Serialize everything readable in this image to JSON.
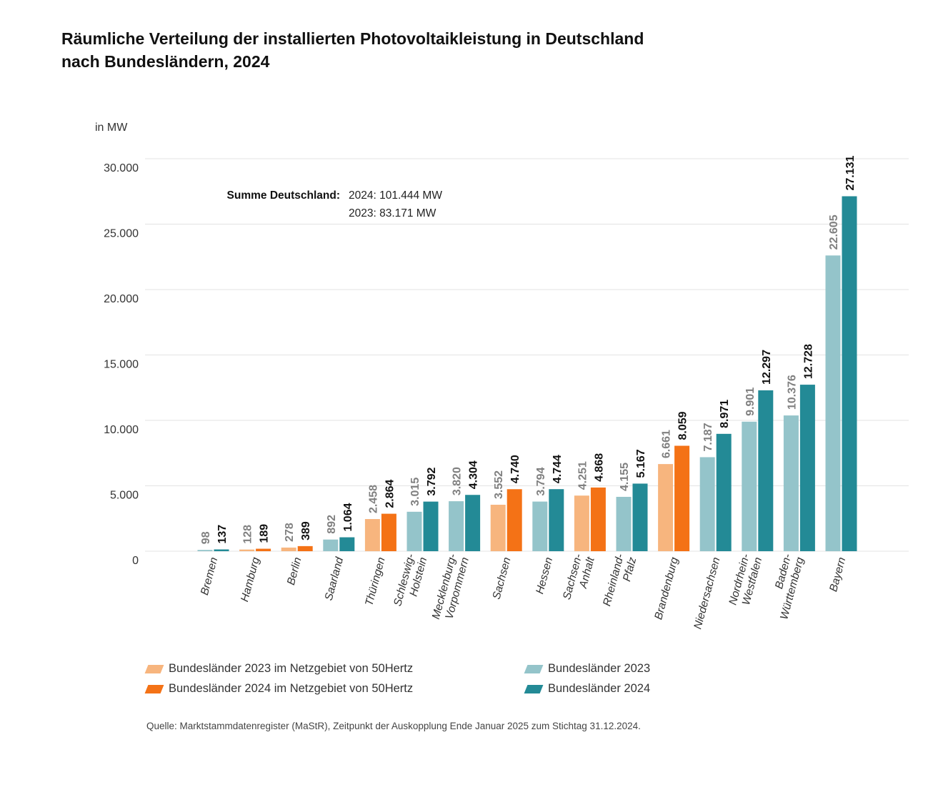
{
  "title": {
    "line1": "Räumliche Verteilung der installierten Photovoltaikleistung in Deutschland",
    "line2": "nach Bundesländern, 2024"
  },
  "annotation": {
    "label": "Summe Deutschland:",
    "line1": "2024: 101.444 MW",
    "line2": "2023: 83.171 MW"
  },
  "legend": [
    {
      "label": "Bundesländer 2023 im Netzgebiet von 50Hertz",
      "color": "#f7b57e"
    },
    {
      "label": "Bundesländer 2024 im Netzgebiet von 50Hertz",
      "color": "#f47216"
    },
    {
      "label": "Bundesländer 2023",
      "color": "#94c4ca"
    },
    {
      "label": "Bundesländer 2024",
      "color": "#238a96"
    }
  ],
  "source": "Quelle: Marktstammdatenregister (MaStR), Zeitpunkt der Auskopplung Ende Januar 2025 zum Stichtag 31.12.2024.",
  "chart_data": {
    "type": "bar",
    "title": "Räumliche Verteilung der installierten Photovoltaikleistung in Deutschland nach Bundesländern, 2024",
    "ylabel": "in MW",
    "xlabel": "",
    "ylim": [
      0,
      30000
    ],
    "yticks": [
      0,
      5000,
      10000,
      15000,
      20000,
      25000,
      30000
    ],
    "ytick_labels": [
      "0",
      "5.000",
      "10.000",
      "15.000",
      "20.000",
      "25.000",
      "30.000"
    ],
    "grid": true,
    "legend_position": "bottom",
    "categories": [
      {
        "label": "Bremen",
        "lines": [
          "Bremen"
        ]
      },
      {
        "label": "Hamburg",
        "lines": [
          "Hamburg"
        ]
      },
      {
        "label": "Berlin",
        "lines": [
          "Berlin"
        ]
      },
      {
        "label": "Saarland",
        "lines": [
          "Saarland"
        ]
      },
      {
        "label": "Thüringen",
        "lines": [
          "Thüringen"
        ]
      },
      {
        "label": "Schleswig-Holstein",
        "lines": [
          "Schleswig-",
          "Holstein"
        ]
      },
      {
        "label": "Mecklenburg-Vorpommern",
        "lines": [
          "Mecklenburg-",
          "Vorpommern"
        ]
      },
      {
        "label": "Sachsen",
        "lines": [
          "Sachsen"
        ]
      },
      {
        "label": "Hessen",
        "lines": [
          "Hessen"
        ]
      },
      {
        "label": "Sachsen-Anhalt",
        "lines": [
          "Sachsen-",
          "Anhalt"
        ]
      },
      {
        "label": "Rheinland-Pfalz",
        "lines": [
          "Rheinland-",
          "Pfalz"
        ]
      },
      {
        "label": "Brandenburg",
        "lines": [
          "Brandenburg"
        ]
      },
      {
        "label": "Niedersachsen",
        "lines": [
          "Niedersachsen"
        ]
      },
      {
        "label": "Nordrhein-Westfalen",
        "lines": [
          "Nordrhein-",
          "Westfalen"
        ]
      },
      {
        "label": "Baden-Württemberg",
        "lines": [
          "Baden-",
          "Württemberg"
        ]
      },
      {
        "label": "Bayern",
        "lines": [
          "Bayern"
        ]
      }
    ],
    "series": [
      {
        "name": "2023",
        "values": [
          98,
          128,
          278,
          892,
          2458,
          3015,
          3820,
          3552,
          3794,
          4251,
          4155,
          6661,
          7187,
          9901,
          10376,
          22605
        ]
      },
      {
        "name": "2024",
        "values": [
          137,
          189,
          389,
          1064,
          2864,
          3792,
          4304,
          4740,
          4744,
          4868,
          5167,
          8059,
          8971,
          12297,
          12728,
          27131
        ]
      }
    ],
    "value_labels_2023": [
      "98",
      "128",
      "278",
      "892",
      "2.458",
      "3.015",
      "3.820",
      "3.552",
      "3.794",
      "4.251",
      "4.155",
      "6.661",
      "7.187",
      "9.901",
      "10.376",
      "22.605"
    ],
    "value_labels_2024": [
      "137",
      "189",
      "389",
      "1.064",
      "2.864",
      "3.792",
      "4.304",
      "4.740",
      "4.744",
      "4.868",
      "5.167",
      "8.059",
      "8.971",
      "12.297",
      "12.728",
      "27.131"
    ],
    "in_50hertz_area": [
      false,
      true,
      true,
      false,
      true,
      false,
      false,
      true,
      false,
      true,
      false,
      true,
      false,
      false,
      false,
      false
    ],
    "colors": {
      "hertz_2023": "#f7b57e",
      "hertz_2024": "#f47216",
      "other_2023": "#94c4ca",
      "other_2024": "#238a96",
      "label_2023": "#808080",
      "label_2024": "#111111",
      "grid": "#e3e3e3"
    }
  }
}
